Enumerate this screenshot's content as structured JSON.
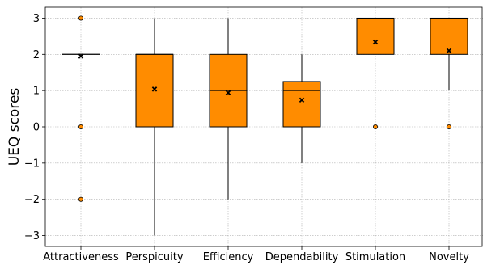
{
  "chart_data": {
    "type": "box",
    "ylabel": "UEQ scores",
    "ylim": [
      -3.3,
      3.3
    ],
    "yticks": [
      -3,
      -2,
      -1,
      0,
      1,
      2,
      3
    ],
    "ytick_labels": [
      "−3",
      "−2",
      "−1",
      "0",
      "1",
      "2",
      "3"
    ],
    "grid": true,
    "colors": {
      "box_fill": "#ff8c00",
      "edge": "#000000",
      "mean_marker": "#000000",
      "grid": "#b0b0b0"
    },
    "categories": [
      "Attractiveness",
      "Perspicuity",
      "Efficiency",
      "Dependability",
      "Stimulation",
      "Novelty"
    ],
    "boxes": [
      {
        "q1": 2,
        "median": 2,
        "q3": 2,
        "whisker_low": 2,
        "whisker_high": 2,
        "mean": 1.95,
        "outliers": [
          3,
          0,
          -2
        ]
      },
      {
        "q1": 0,
        "median": 2,
        "q3": 2,
        "whisker_low": -3,
        "whisker_high": 3,
        "mean": 1.04,
        "outliers": []
      },
      {
        "q1": 0,
        "median": 1,
        "q3": 2,
        "whisker_low": -2,
        "whisker_high": 3,
        "mean": 0.94,
        "outliers": []
      },
      {
        "q1": 0,
        "median": 1,
        "q3": 1.25,
        "whisker_low": -1,
        "whisker_high": 2,
        "mean": 0.74,
        "outliers": []
      },
      {
        "q1": 2,
        "median": 3,
        "q3": 3,
        "whisker_low": 2,
        "whisker_high": 3,
        "mean": 2.34,
        "outliers": [
          0
        ]
      },
      {
        "q1": 2,
        "median": 3,
        "q3": 3,
        "whisker_low": 1,
        "whisker_high": 3,
        "mean": 2.1,
        "outliers": [
          0
        ]
      }
    ]
  }
}
